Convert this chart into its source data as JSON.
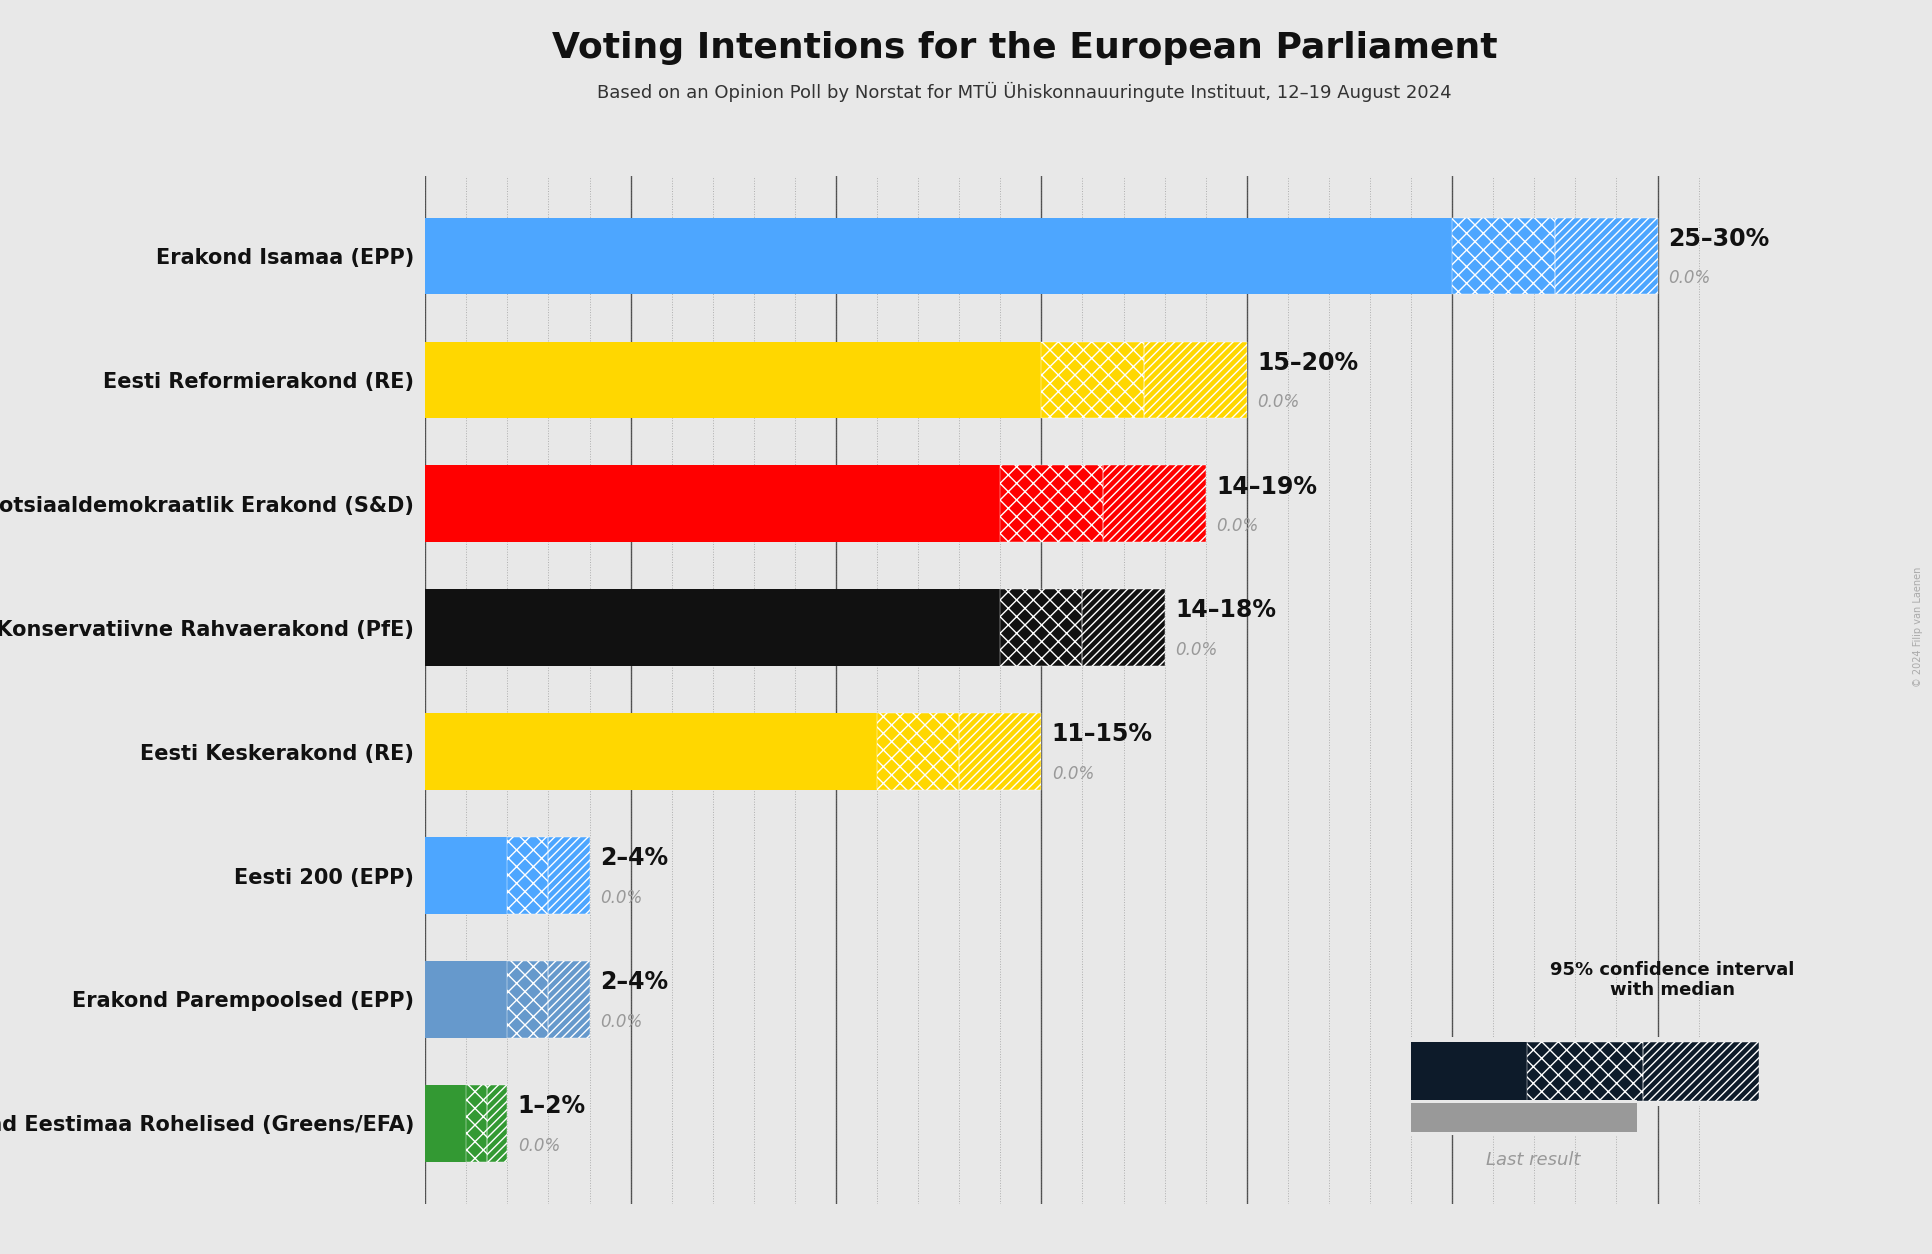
{
  "title": "Voting Intentions for the European Parliament",
  "subtitle": "Based on an Opinion Poll by Norstat for MTÜ Ühiskonnauuringute Instituut, 12–19 August 2024",
  "copyright": "© 2024 Filip van Laenen",
  "parties": [
    "Erakond Isamaa (EPP)",
    "Eesti Reformierakond (RE)",
    "Sotsiaaldemokraatlik Erakond (S&D)",
    "Eesti Konservatiivne Rahvaerakond (PfE)",
    "Eesti Keskerakond (RE)",
    "Eesti 200 (EPP)",
    "Erakond Parempoolsed (EPP)",
    "Erakond Eestimaa Rohelised (Greens/EFA)"
  ],
  "bar_low": [
    25,
    15,
    14,
    14,
    11,
    2,
    2,
    1
  ],
  "bar_high": [
    30,
    20,
    19,
    18,
    15,
    4,
    4,
    2
  ],
  "labels": [
    "25–30%",
    "15–20%",
    "14–19%",
    "14–18%",
    "11–15%",
    "2–4%",
    "2–4%",
    "1–2%"
  ],
  "colors": [
    "#4da6ff",
    "#FFD700",
    "#FF0000",
    "#111111",
    "#FFD700",
    "#4da6ff",
    "#6699cc",
    "#339933"
  ],
  "xmax": 32,
  "background_color": "#e8e8e8",
  "grid_color": "#888888",
  "legend_solid_color": "#0d1b2a",
  "legend_last_color": "#999999",
  "legend_label_ci": "95% confidence interval\nwith median",
  "legend_label_last": "Last result"
}
